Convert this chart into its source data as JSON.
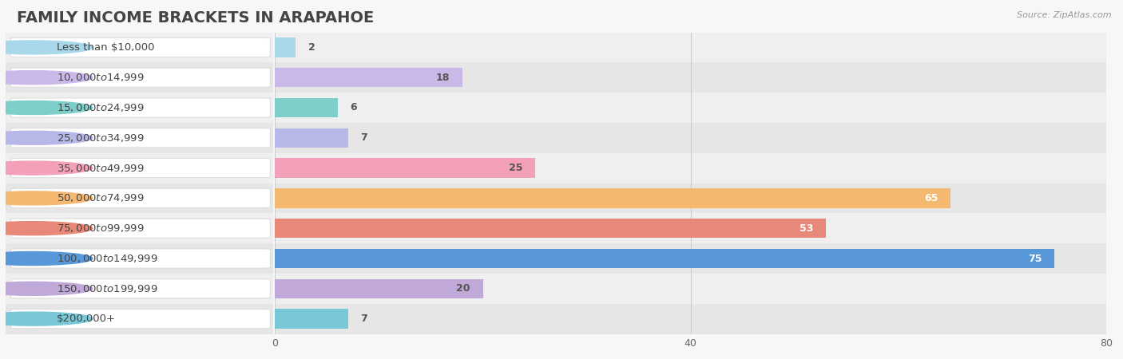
{
  "title": "FAMILY INCOME BRACKETS IN ARAPAHOE",
  "source": "Source: ZipAtlas.com",
  "categories": [
    "Less than $10,000",
    "$10,000 to $14,999",
    "$15,000 to $24,999",
    "$25,000 to $34,999",
    "$35,000 to $49,999",
    "$50,000 to $74,999",
    "$75,000 to $99,999",
    "$100,000 to $149,999",
    "$150,000 to $199,999",
    "$200,000+"
  ],
  "values": [
    2,
    18,
    6,
    7,
    25,
    65,
    53,
    75,
    20,
    7
  ],
  "bar_colors": [
    "#a8d8ea",
    "#c9b8e8",
    "#7ececa",
    "#b8b8e8",
    "#f4a0b8",
    "#f4b870",
    "#e88878",
    "#5898d8",
    "#c0a8d8",
    "#78c8d8"
  ],
  "label_colors": [
    "#555555",
    "#555555",
    "#555555",
    "#555555",
    "#555555",
    "#ffffff",
    "#ffffff",
    "#ffffff",
    "#555555",
    "#555555"
  ],
  "xlim": [
    0,
    80
  ],
  "xticks": [
    0,
    40,
    80
  ],
  "background_color": "#f7f7f7",
  "bar_background_color": "#ebebeb",
  "row_bg_colors": [
    "#f0f0f0",
    "#e8e8e8"
  ],
  "title_fontsize": 14,
  "label_fontsize": 9.5,
  "value_fontsize": 9
}
